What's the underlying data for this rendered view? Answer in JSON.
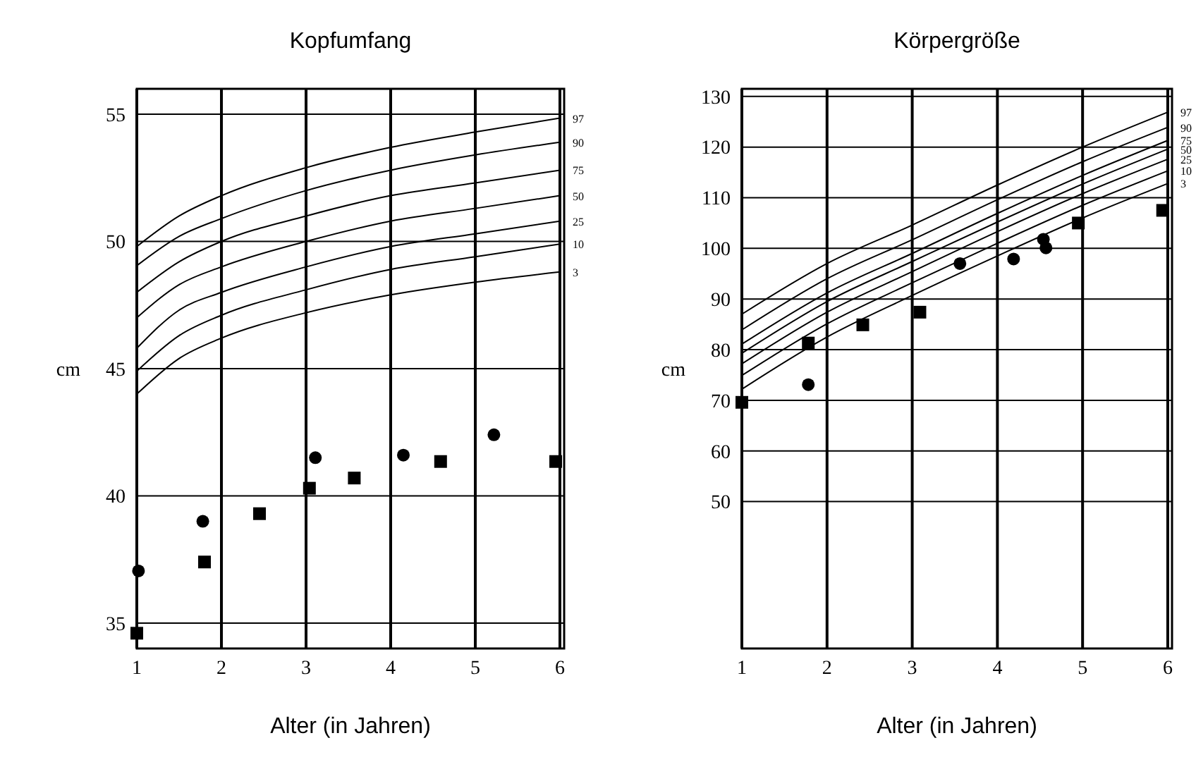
{
  "chart_data": [
    {
      "type": "line",
      "title": "Kopfumfang",
      "xlabel": "Alter (in Jahren)",
      "ylabel": "cm",
      "xlim": [
        1,
        6.05
      ],
      "ylim": [
        34,
        56
      ],
      "xticks": [
        1,
        2,
        3,
        4,
        5,
        6
      ],
      "yticks": [
        35,
        40,
        45,
        50,
        55
      ],
      "grid": true,
      "series": [
        {
          "name": "97",
          "color": "#000000",
          "marker": "none",
          "x": [
            1,
            1.5,
            2,
            3,
            4,
            5,
            6
          ],
          "values": [
            49.8,
            51.0,
            51.8,
            52.9,
            53.7,
            54.3,
            54.85
          ]
        },
        {
          "name": "90",
          "color": "#000000",
          "marker": "none",
          "x": [
            1,
            1.5,
            2,
            3,
            4,
            5,
            6
          ],
          "values": [
            49.05,
            50.2,
            50.9,
            52.0,
            52.8,
            53.4,
            53.9
          ]
        },
        {
          "name": "75",
          "color": "#000000",
          "marker": "none",
          "x": [
            1,
            1.5,
            2,
            3,
            4,
            5,
            6
          ],
          "values": [
            48.0,
            49.2,
            50.0,
            51.0,
            51.8,
            52.3,
            52.8
          ]
        },
        {
          "name": "50",
          "color": "#000000",
          "marker": "none",
          "x": [
            1,
            1.5,
            2,
            3,
            4,
            5,
            6
          ],
          "values": [
            47.0,
            48.3,
            49.0,
            50.0,
            50.8,
            51.3,
            51.8
          ]
        },
        {
          "name": "25",
          "color": "#000000",
          "marker": "none",
          "x": [
            1,
            1.5,
            2,
            3,
            4,
            5,
            6
          ],
          "values": [
            45.8,
            47.3,
            48.0,
            49.0,
            49.8,
            50.3,
            50.8
          ]
        },
        {
          "name": "10",
          "color": "#000000",
          "marker": "none",
          "x": [
            1,
            1.5,
            2,
            3,
            4,
            5,
            6
          ],
          "values": [
            44.9,
            46.3,
            47.1,
            48.1,
            48.9,
            49.4,
            49.9
          ]
        },
        {
          "name": "3",
          "color": "#000000",
          "marker": "none",
          "x": [
            1,
            1.5,
            2,
            3,
            4,
            5,
            6
          ],
          "values": [
            44.0,
            45.4,
            46.2,
            47.2,
            47.9,
            48.4,
            48.8
          ]
        },
        {
          "type": "scatter",
          "color": "#000000",
          "marker": "circle",
          "x": [
            1.02,
            1.78,
            3.11,
            4.15,
            5.22
          ],
          "values": [
            37.05,
            39.0,
            41.5,
            41.6,
            42.4
          ]
        },
        {
          "type": "scatter",
          "color": "#000000",
          "marker": "square",
          "x": [
            1.0,
            1.8,
            2.45,
            3.04,
            3.57,
            4.59,
            5.95
          ],
          "values": [
            34.6,
            37.4,
            39.3,
            40.3,
            40.7,
            41.35,
            41.35
          ]
        }
      ]
    },
    {
      "type": "line",
      "title": "Körpergröße",
      "xlabel": "Alter (in Jahren)",
      "ylabel": "cm",
      "xlim": [
        1,
        6.05
      ],
      "ylim": [
        21,
        131.5
      ],
      "xticks": [
        1,
        2,
        3,
        4,
        5,
        6
      ],
      "yticks": [
        50,
        60,
        70,
        80,
        90,
        100,
        110,
        120,
        130
      ],
      "grid": true,
      "series": [
        {
          "name": "97",
          "color": "#000000",
          "marker": "none",
          "x": [
            1,
            2,
            3,
            4,
            5,
            6
          ],
          "values": [
            87.0,
            97.0,
            104.6,
            112.5,
            120.0,
            126.9
          ]
        },
        {
          "name": "90",
          "color": "#000000",
          "marker": "none",
          "x": [
            1,
            2,
            3,
            4,
            5,
            6
          ],
          "values": [
            83.9,
            94.0,
            101.7,
            109.6,
            117.1,
            123.9
          ]
        },
        {
          "name": "75",
          "color": "#000000",
          "marker": "none",
          "x": [
            1,
            2,
            3,
            4,
            5,
            6
          ],
          "values": [
            81.1,
            91.2,
            99.0,
            106.9,
            114.4,
            121.3
          ]
        },
        {
          "name": "50",
          "color": "#000000",
          "marker": "none",
          "x": [
            1,
            2,
            3,
            4,
            5,
            6
          ],
          "values": [
            79.3,
            89.5,
            97.4,
            105.2,
            112.7,
            119.6
          ]
        },
        {
          "name": "25",
          "color": "#000000",
          "marker": "none",
          "x": [
            1,
            2,
            3,
            4,
            5,
            6
          ],
          "values": [
            77.2,
            87.4,
            95.4,
            103.3,
            110.8,
            117.6
          ]
        },
        {
          "name": "10",
          "color": "#000000",
          "marker": "none",
          "x": [
            1,
            2,
            3,
            4,
            5,
            6
          ],
          "values": [
            74.9,
            85.1,
            93.2,
            101.0,
            108.5,
            115.3
          ]
        },
        {
          "name": "3",
          "color": "#000000",
          "marker": "none",
          "x": [
            1,
            2,
            3,
            4,
            5,
            6
          ],
          "values": [
            72.2,
            82.5,
            90.7,
            98.5,
            106.0,
            112.8
          ]
        },
        {
          "type": "scatter",
          "color": "#000000",
          "marker": "circle",
          "x": [
            1.78,
            3.56,
            4.19,
            4.54,
            4.57
          ],
          "values": [
            73.1,
            97.0,
            97.9,
            101.8,
            100.1
          ]
        },
        {
          "type": "scatter",
          "color": "#000000",
          "marker": "square",
          "x": [
            1.0,
            1.78,
            2.42,
            3.09,
            4.95,
            5.94
          ],
          "values": [
            69.6,
            81.3,
            84.9,
            87.4,
            105.0,
            107.5
          ]
        }
      ]
    }
  ]
}
